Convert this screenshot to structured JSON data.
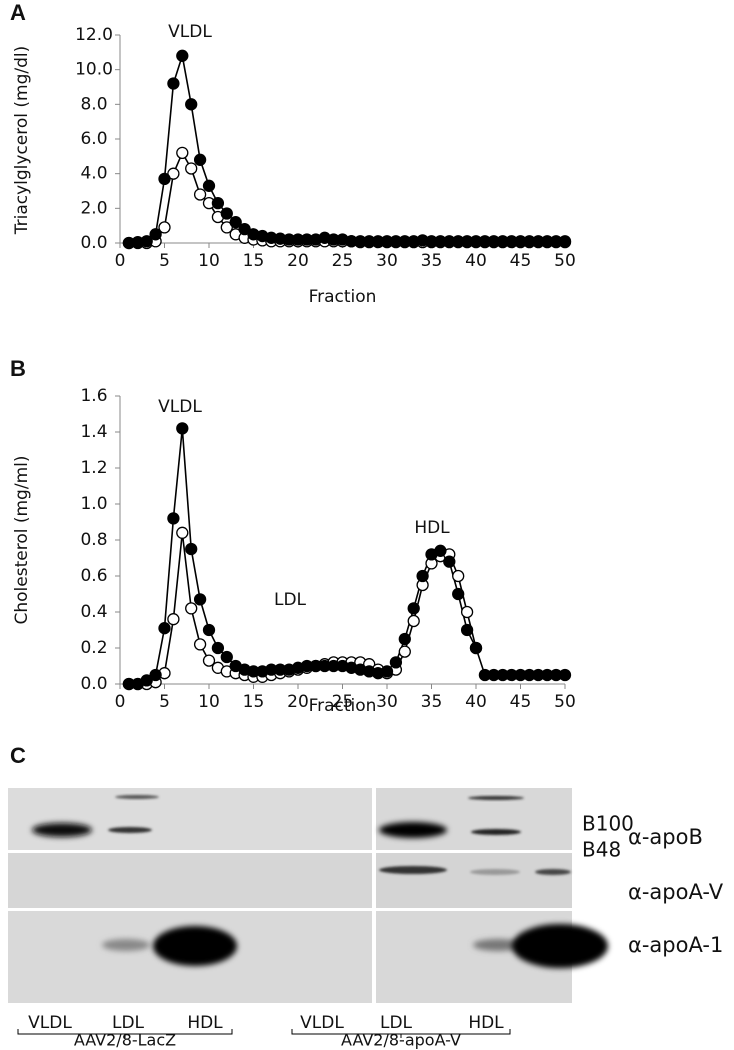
{
  "chart_data": [
    {
      "type": "line",
      "y_label": "Triacylglycerol (mg/dl)",
      "x_label": "Fraction",
      "annotations": [
        "VLDL"
      ],
      "x": [
        1,
        2,
        3,
        4,
        5,
        6,
        7,
        8,
        9,
        10,
        11,
        12,
        13,
        14,
        15,
        16,
        17,
        18,
        19,
        20,
        21,
        22,
        23,
        24,
        25,
        26,
        27,
        28,
        29,
        30,
        31,
        32,
        33,
        34,
        35,
        36,
        37,
        38,
        39,
        40,
        41,
        42,
        43,
        44,
        45,
        46,
        47,
        48,
        49,
        50
      ],
      "xlim": [
        0,
        50
      ],
      "xticks": [
        0,
        5,
        10,
        15,
        20,
        25,
        30,
        35,
        40,
        45,
        50
      ],
      "ylim": [
        0,
        12
      ],
      "yticks": [
        {
          "value": 0,
          "label": "0.0"
        },
        {
          "value": 2,
          "label": "2.0"
        },
        {
          "value": 4,
          "label": "4.0"
        },
        {
          "value": 6,
          "label": "6.0"
        },
        {
          "value": 8,
          "label": "8.0"
        },
        {
          "value": 10,
          "label": "10.0"
        },
        {
          "value": 12,
          "label": "12.0"
        }
      ],
      "series": [
        {
          "color": "#000000",
          "marker": "filled",
          "values": [
            0,
            0.05,
            0.1,
            0.5,
            3.7,
            9.2,
            10.8,
            8.0,
            4.8,
            3.3,
            2.3,
            1.7,
            1.2,
            0.8,
            0.5,
            0.4,
            0.3,
            0.25,
            0.2,
            0.2,
            0.2,
            0.2,
            0.3,
            0.2,
            0.2,
            0.1,
            0.1,
            0.1,
            0.1,
            0.1,
            0.1,
            0.1,
            0.1,
            0.15,
            0.1,
            0.1,
            0.1,
            0.1,
            0.1,
            0.1,
            0.1,
            0.1,
            0.1,
            0.1,
            0.1,
            0.1,
            0.1,
            0.1,
            0.1,
            0.1
          ]
        },
        {
          "color": "#000000",
          "marker": "open",
          "values": [
            0,
            0,
            0,
            0.1,
            0.9,
            4.0,
            5.2,
            4.3,
            2.8,
            2.3,
            1.5,
            0.9,
            0.5,
            0.3,
            0.2,
            0.15,
            0.1,
            0.1,
            0.1,
            0.1,
            0.1,
            0.1,
            0.1,
            0.1,
            0.1,
            0.1,
            0.05,
            0.05,
            0.05,
            0.05,
            0.05,
            0.05,
            0.05,
            0.05,
            0.05,
            0.05,
            0.05,
            0.05,
            0.05,
            0.05,
            0.05,
            0.05,
            0.05,
            0.05,
            0.05,
            0.05,
            0.05,
            0.05,
            0.05,
            0.05
          ]
        }
      ]
    },
    {
      "type": "line",
      "y_label": "Cholesterol (mg/ml)",
      "x_label": "Fraction",
      "annotations": [
        "VLDL",
        "LDL",
        "HDL"
      ],
      "x": [
        1,
        2,
        3,
        4,
        5,
        6,
        7,
        8,
        9,
        10,
        11,
        12,
        13,
        14,
        15,
        16,
        17,
        18,
        19,
        20,
        21,
        22,
        23,
        24,
        25,
        26,
        27,
        28,
        29,
        30,
        31,
        32,
        33,
        34,
        35,
        36,
        37,
        38,
        39,
        40,
        41,
        42,
        43,
        44,
        45,
        46,
        47,
        48,
        49,
        50
      ],
      "xlim": [
        0,
        50
      ],
      "xticks": [
        0,
        5,
        10,
        15,
        20,
        25,
        30,
        35,
        40,
        45,
        50
      ],
      "ylim": [
        0,
        1.6
      ],
      "yticks": [
        {
          "value": 0,
          "label": "0.0"
        },
        {
          "value": 0.2,
          "label": "0.2"
        },
        {
          "value": 0.4,
          "label": "0.4"
        },
        {
          "value": 0.6,
          "label": "0.6"
        },
        {
          "value": 0.8,
          "label": "0.8"
        },
        {
          "value": 1,
          "label": "1.0"
        },
        {
          "value": 1.2,
          "label": "1.2"
        },
        {
          "value": 1.4,
          "label": "1.4"
        },
        {
          "value": 1.6,
          "label": "1.6"
        }
      ],
      "series": [
        {
          "color": "#000000",
          "marker": "filled",
          "values": [
            0,
            0,
            0.02,
            0.05,
            0.31,
            0.92,
            1.42,
            0.75,
            0.47,
            0.3,
            0.2,
            0.15,
            0.1,
            0.08,
            0.07,
            0.07,
            0.08,
            0.08,
            0.08,
            0.09,
            0.1,
            0.1,
            0.1,
            0.1,
            0.1,
            0.09,
            0.08,
            0.07,
            0.06,
            0.07,
            0.12,
            0.25,
            0.42,
            0.6,
            0.72,
            0.74,
            0.68,
            0.5,
            0.3,
            0.2,
            0.05,
            0.05,
            0.05,
            0.05,
            0.05,
            0.05,
            0.05,
            0.05,
            0.05,
            0.05
          ]
        },
        {
          "color": "#000000",
          "marker": "open",
          "values": [
            0,
            0,
            0,
            0.01,
            0.06,
            0.36,
            0.84,
            0.42,
            0.22,
            0.13,
            0.09,
            0.07,
            0.06,
            0.05,
            0.04,
            0.04,
            0.05,
            0.06,
            0.07,
            0.08,
            0.09,
            0.1,
            0.11,
            0.12,
            0.12,
            0.12,
            0.12,
            0.11,
            0.08,
            0.06,
            0.08,
            0.18,
            0.35,
            0.55,
            0.67,
            0.71,
            0.72,
            0.6,
            0.4,
            0.2,
            null,
            null,
            null,
            null,
            null,
            null,
            null,
            null,
            null,
            null
          ]
        }
      ]
    }
  ],
  "panel_labels": [
    "A",
    "B",
    "C"
  ],
  "blot": {
    "band_labels": [
      "B100",
      "B48"
    ],
    "row_labels": [
      "α-apoB",
      "α-apoA-V",
      "α-apoA-1"
    ],
    "lanes": [
      [
        "VLDL",
        "LDL",
        "HDL"
      ],
      [
        "VLDL",
        "LDL",
        "HDL"
      ]
    ],
    "groups": [
      "AAV2/8-LacZ",
      "AAV2/8-apoA-V"
    ]
  }
}
